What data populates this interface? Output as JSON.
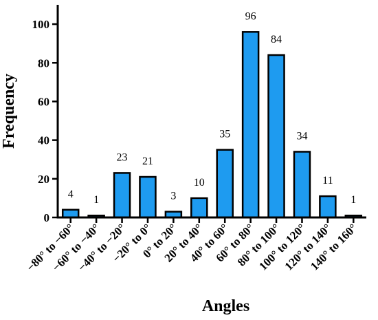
{
  "chart_data": {
    "type": "bar",
    "categories": [
      "−80° to −60°",
      "−60° to −40°",
      "−40° to −20°",
      "−20° to 0°",
      "0° to 20°",
      "20° to 40°",
      "40° to 60°",
      "60° to 80°",
      "80° to 100°",
      "100° to 120°",
      "120° to 140°",
      "140° to 160°"
    ],
    "values": [
      4,
      1,
      23,
      21,
      3,
      10,
      35,
      96,
      84,
      34,
      11,
      1
    ],
    "data_labels": [
      "4",
      "1",
      "23",
      "21",
      "3",
      "10",
      "35",
      "96",
      "84",
      "34",
      "11",
      "1"
    ],
    "title": "",
    "xlabel": "Angles",
    "ylabel": "Frequency",
    "ylim": [
      0,
      110
    ],
    "yticks": [
      0,
      20,
      40,
      60,
      80,
      100
    ],
    "ytick_labels": [
      "0",
      "20",
      "40",
      "60",
      "80",
      "100"
    ],
    "grid": false,
    "colors": {
      "bar_fill": "#1E9BF0",
      "bar_stroke": "#000000",
      "axis": "#000000"
    }
  }
}
